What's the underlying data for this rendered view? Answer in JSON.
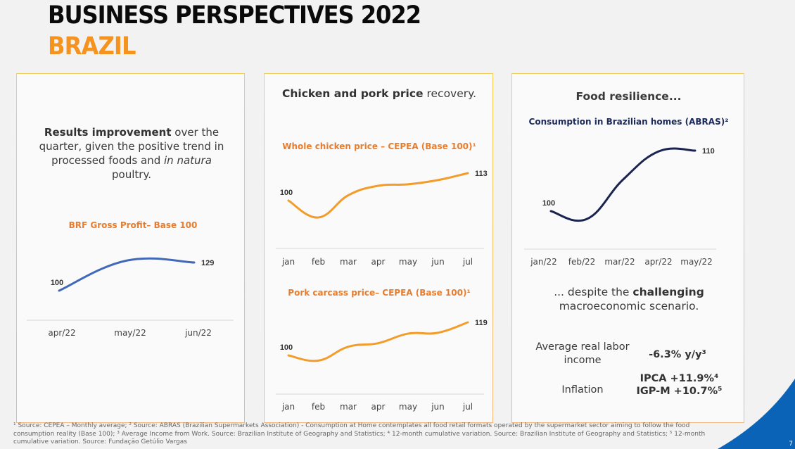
{
  "header": {
    "title": "BUSINESS PERSPECTIVES 2022",
    "subtitle": "BRAZIL"
  },
  "card1": {
    "headline_bold": "Results improvement",
    "headline_rest1": " over the quarter, given the positive trend in processed foods and ",
    "headline_italic": "in natura",
    "headline_rest2": " poultry."
  },
  "card2": {
    "headline_bold": "Chicken and pork price",
    "headline_rest": " recovery."
  },
  "card3": {
    "headline": "Food resilience...",
    "sub_headline_pre": "... despite the ",
    "sub_headline_bold": "challenging",
    "sub_headline_post": " macroeconomic scenario.",
    "stats": [
      {
        "label": "Average real labor income",
        "value": "-6.3% y/y³"
      },
      {
        "label": "Inflation",
        "value_lines": [
          "IPCA +11.9%⁴",
          "IGP-M +10.7%⁵"
        ]
      }
    ]
  },
  "colors": {
    "brand_orange": "#f6921e",
    "chart_orange": "#f39c2a",
    "chart_blue": "#4169b8",
    "chart_navy": "#1b2450",
    "corner_blue": "#0b63b8"
  },
  "chart_data": [
    {
      "id": "brf",
      "type": "line",
      "title": "BRF Gross Profit– Base 100",
      "categories": [
        "apr/22",
        "may/22",
        "jun/22"
      ],
      "series": [
        {
          "name": "BRF Gross Profit",
          "values": [
            100,
            131,
            129
          ]
        }
      ],
      "data_labels": {
        "first": "100",
        "last": "129"
      },
      "ylim": [
        90,
        140
      ],
      "xlabel": "",
      "ylabel": "",
      "grid": false
    },
    {
      "id": "chicken",
      "type": "line",
      "title": "Whole chicken price – CEPEA (Base 100)¹",
      "categories": [
        "jan",
        "feb",
        "mar",
        "apr",
        "may",
        "jun",
        "jul"
      ],
      "series": [
        {
          "name": "Whole chicken price",
          "values": [
            100,
            92,
            102.5,
            107,
            107.7,
            109.7,
            113
          ]
        }
      ],
      "data_labels": {
        "first": "100",
        "last": "113"
      },
      "ylim": [
        85,
        120
      ],
      "xlabel": "",
      "ylabel": "",
      "grid": false
    },
    {
      "id": "pork",
      "type": "line",
      "title": "Pork carcass price– CEPEA (Base 100)¹",
      "categories": [
        "jan",
        "feb",
        "mar",
        "apr",
        "may",
        "jun",
        "jul"
      ],
      "series": [
        {
          "name": "Pork carcass price",
          "values": [
            100,
            97,
            105,
            107,
            112.5,
            113,
            119
          ]
        }
      ],
      "data_labels": {
        "first": "100",
        "last": "119"
      },
      "ylim": [
        85,
        125
      ],
      "xlabel": "",
      "ylabel": "",
      "grid": false
    },
    {
      "id": "abras",
      "type": "line",
      "title": "Consumption in Brazilian homes (ABRAS)²",
      "categories": [
        "jan/22",
        "feb/22",
        "mar/22",
        "apr/22",
        "may/22"
      ],
      "series": [
        {
          "name": "Consumption in Brazilian homes",
          "values": [
            100,
            98.7,
            105.2,
            109.9,
            110
          ]
        }
      ],
      "data_labels": {
        "first": "100",
        "last": "110"
      },
      "ylim": [
        95,
        112
      ],
      "xlabel": "",
      "ylabel": "",
      "grid": false
    }
  ],
  "footnote": "¹ Source: CEPEA – Monthly average; ² Source: ABRAS (Brazilian Supermarkets Association) - Consumption at Home contemplates all food retail formats operated by the supermarket sector aiming to follow the food consumption reality (Base 100); ³ Average Income from Work. Source: Brazilian Institute of Geography and Statistics; ⁴ 12-month cumulative variation. Source: Brazilian Institute of Geography and Statistics; ⁵ 12-month cumulative variation. Source: Fundação Getúlio Vargas",
  "page_number": "7"
}
